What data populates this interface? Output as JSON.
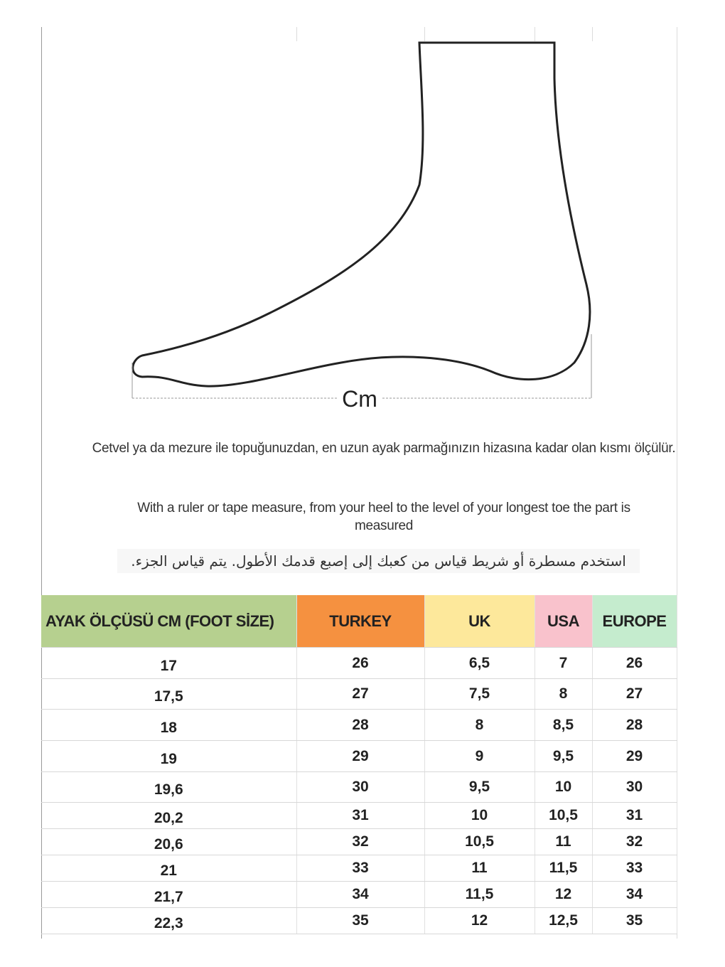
{
  "figure": {
    "measure_label": "Cm"
  },
  "instructions": {
    "turkish": "Cetvel ya da mezure ile topuğunuzdan, en uzun ayak parmağınızın hizasına kadar olan kısmı ölçülür.",
    "english": "With a ruler or tape measure, from your heel to the level of your longest toe the part is measured",
    "arabic": "استخدم مسطرة أو شريط قياس من  كعبك إلى إصبع قدمك الأطول.  يتم قياس الجزء."
  },
  "table": {
    "headers": [
      {
        "label": "AYAK ÖLÇÜSÜ CM (FOOT SİZE)",
        "color": "#b6d08f"
      },
      {
        "label": "TURKEY",
        "color": "#f59140"
      },
      {
        "label": "UK",
        "color": "#fde89b"
      },
      {
        "label": "USA",
        "color": "#f9c2cc"
      },
      {
        "label": "EUROPE",
        "color": "#c5ecce"
      }
    ],
    "rows": [
      [
        "17",
        "26",
        "6,5",
        "7",
        "26"
      ],
      [
        "17,5",
        "27",
        "7,5",
        "8",
        "27"
      ],
      [
        "18",
        "28",
        "8",
        "8,5",
        "28"
      ],
      [
        "19",
        "29",
        "9",
        "9,5",
        "29"
      ],
      [
        "19,6",
        "30",
        "9,5",
        "10",
        "30"
      ],
      [
        "20,2",
        "31",
        "10",
        "10,5",
        "31"
      ],
      [
        "20,6",
        "32",
        "10,5",
        "11",
        "32"
      ],
      [
        "21",
        "33",
        "11",
        "11,5",
        "33"
      ],
      [
        "21,7",
        "34",
        "11,5",
        "12",
        "34"
      ],
      [
        "22,3",
        "35",
        "12",
        "12,5",
        "35"
      ]
    ]
  }
}
